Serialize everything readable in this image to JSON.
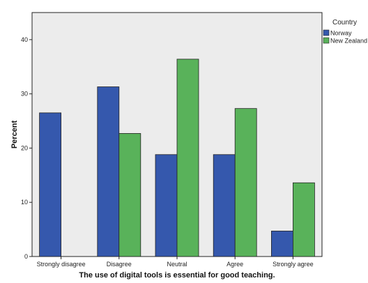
{
  "chart_data": {
    "type": "bar",
    "title": "",
    "xlabel": "The use of digital tools is essential for good teaching.",
    "ylabel": "Percent",
    "categories": [
      "Strongly disagree",
      "Disagree",
      "Neutral",
      "Agree",
      "Strongly agree"
    ],
    "series": [
      {
        "name": "Norway",
        "color": "#3558ad",
        "values": [
          26.5,
          31.3,
          18.8,
          18.8,
          4.7
        ]
      },
      {
        "name": "New Zealand",
        "color": "#59b25a",
        "values": [
          null,
          22.7,
          36.4,
          27.3,
          13.6
        ]
      }
    ],
    "ylim": [
      0,
      45
    ],
    "yticks": [
      0,
      10,
      20,
      30,
      40
    ],
    "grid": false,
    "plot_background": "#ececec",
    "legend": {
      "title": "Country",
      "position": "top-right"
    }
  }
}
